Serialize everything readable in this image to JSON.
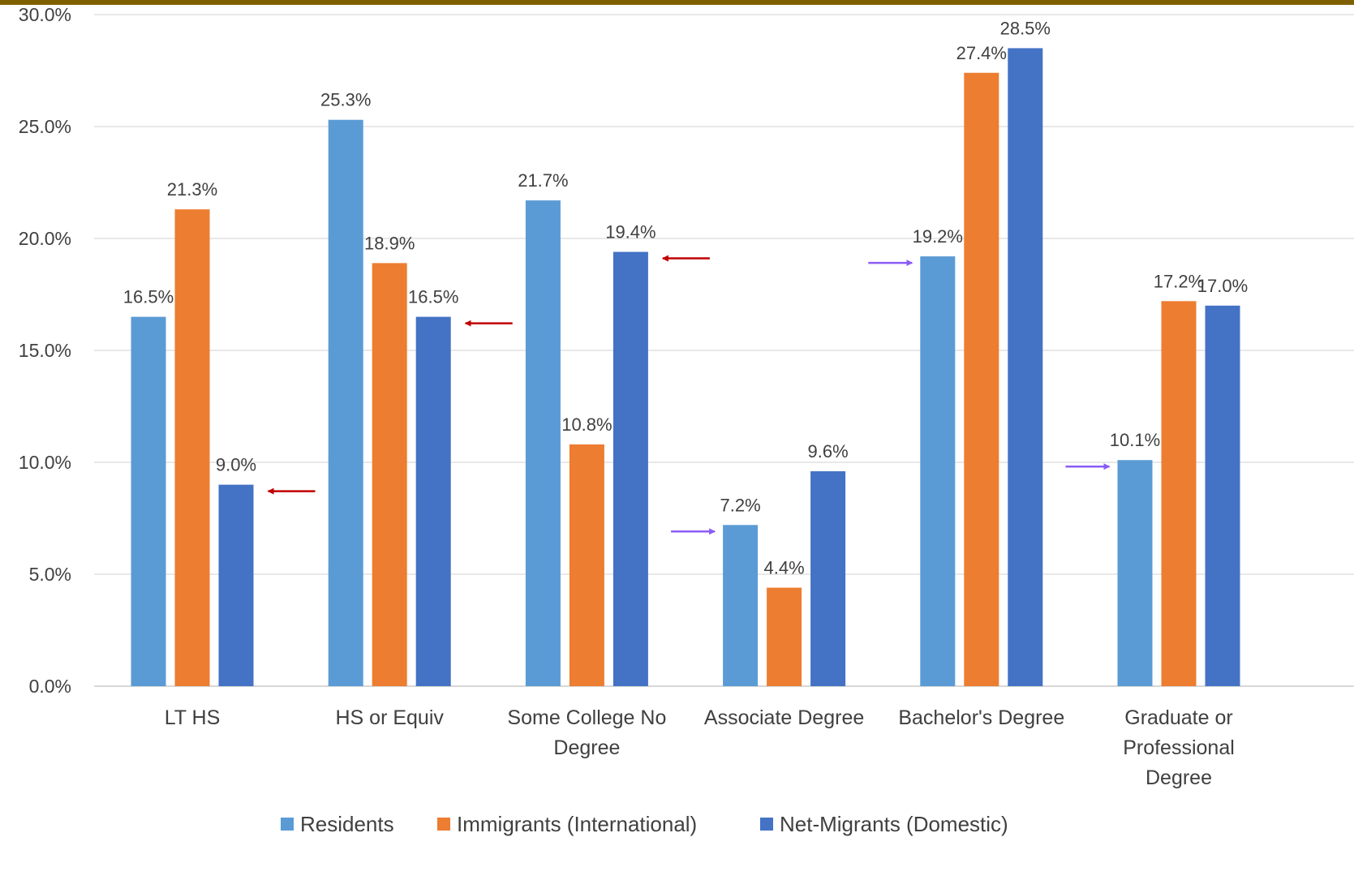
{
  "chart_data": {
    "type": "bar",
    "title": "",
    "xlabel": "",
    "ylabel": "",
    "ylim": [
      0,
      30
    ],
    "y_ticks": [
      "0.0%",
      "5.0%",
      "10.0%",
      "15.0%",
      "20.0%",
      "25.0%",
      "30.0%"
    ],
    "grid": true,
    "legend_position": "bottom",
    "categories": [
      [
        "LT HS"
      ],
      [
        "HS or Equiv"
      ],
      [
        "Some College No",
        "Degree"
      ],
      [
        "Associate Degree"
      ],
      [
        "Bachelor's Degree"
      ],
      [
        "Graduate or",
        "Professional",
        "Degree"
      ]
    ],
    "series": [
      {
        "name": "Residents",
        "color": "#5B9BD5",
        "values": [
          16.5,
          25.3,
          21.7,
          7.2,
          19.2,
          10.1
        ],
        "labels": [
          "16.5%",
          "25.3%",
          "21.7%",
          "7.2%",
          "19.2%",
          "10.1%"
        ]
      },
      {
        "name": "Immigrants (International)",
        "color": "#ED7D31",
        "values": [
          21.3,
          18.9,
          10.8,
          4.4,
          27.4,
          17.2
        ],
        "labels": [
          "21.3%",
          "18.9%",
          "10.8%",
          "4.4%",
          "27.4%",
          "17.2%"
        ]
      },
      {
        "name": "Net-Migrants (Domestic)",
        "color": "#4472C4",
        "values": [
          9.0,
          16.5,
          19.4,
          9.6,
          28.5,
          17.0
        ],
        "labels": [
          "9.0%",
          "16.5%",
          "19.4%",
          "9.6%",
          "28.5%",
          "17.0%"
        ]
      }
    ],
    "annotations": [
      {
        "type": "arrow",
        "direction": "left",
        "color": "#C00000",
        "category_index": 0,
        "series_index": 2,
        "value": 9.0
      },
      {
        "type": "arrow",
        "direction": "left",
        "color": "#C00000",
        "category_index": 1,
        "series_index": 2,
        "value": 16.5
      },
      {
        "type": "arrow",
        "direction": "left",
        "color": "#C00000",
        "category_index": 2,
        "series_index": 2,
        "value": 19.4
      },
      {
        "type": "arrow",
        "direction": "right",
        "color": "#8B5CF6",
        "category_index": 3,
        "series_index": 0,
        "value": 7.2
      },
      {
        "type": "arrow",
        "direction": "right",
        "color": "#8B5CF6",
        "category_index": 4,
        "series_index": 0,
        "value": 19.2
      },
      {
        "type": "arrow",
        "direction": "right",
        "color": "#8B5CF6",
        "category_index": 5,
        "series_index": 0,
        "value": 10.1
      }
    ]
  },
  "page": {
    "accent_color": "#7F6000"
  }
}
